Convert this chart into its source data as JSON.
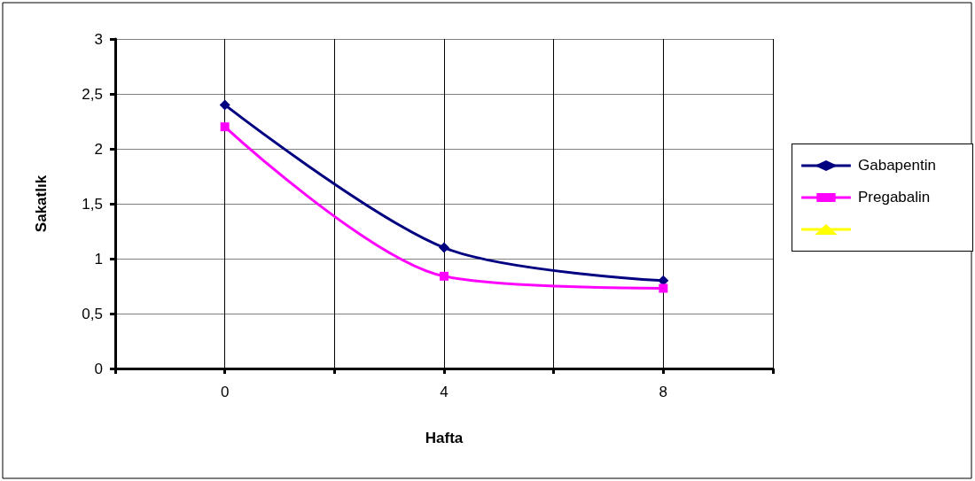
{
  "chart_data": {
    "type": "line",
    "xlabel": "Hafta",
    "ylabel": "Sakatlık",
    "x": [
      0,
      4,
      8
    ],
    "series": [
      {
        "name": "Gabapentin",
        "color": "#000080",
        "marker": "diamond",
        "values": [
          2.4,
          1.1,
          0.8
        ]
      },
      {
        "name": "Pregabalin",
        "color": "#ff00ff",
        "marker": "square",
        "values": [
          2.2,
          0.84,
          0.73
        ]
      },
      {
        "color": "#ffff00",
        "marker": "triangle",
        "values": [
          null,
          null,
          null
        ]
      }
    ],
    "xlim": [
      -2,
      10
    ],
    "xticks": [
      {
        "value": -2,
        "label": null
      },
      0,
      {
        "value": 2,
        "label": null
      },
      4,
      {
        "value": 6,
        "label": null
      },
      8,
      {
        "value": 10,
        "label": null
      }
    ],
    "ylim": [
      0,
      3
    ],
    "yticks": [
      0,
      {
        "value": 0.5,
        "label": "0,5"
      },
      1,
      {
        "value": 1.5,
        "label": "1,5"
      },
      2,
      {
        "value": 2.5,
        "label": "2,5"
      },
      3
    ],
    "grid": true,
    "legend": "right"
  }
}
